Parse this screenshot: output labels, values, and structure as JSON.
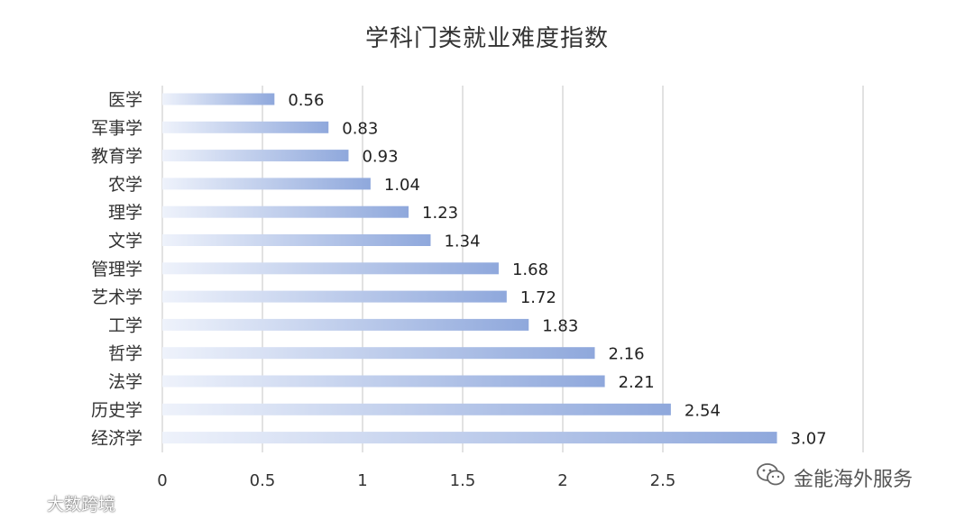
{
  "chart_data": {
    "type": "bar",
    "orientation": "horizontal",
    "title": "学科门类就业难度指数",
    "categories": [
      "医学",
      "军事学",
      "教育学",
      "农学",
      "理学",
      "文学",
      "管理学",
      "艺术学",
      "工学",
      "哲学",
      "法学",
      "历史学",
      "经济学"
    ],
    "values": [
      0.56,
      0.83,
      0.93,
      1.04,
      1.23,
      1.34,
      1.68,
      1.72,
      1.83,
      2.16,
      2.21,
      2.54,
      3.07
    ],
    "value_labels": [
      "0.56",
      "0.83",
      "0.93",
      "1.04",
      "1.23",
      "1.34",
      "1.68",
      "1.72",
      "1.83",
      "2.16",
      "2.21",
      "2.54",
      "3.07"
    ],
    "xlim": [
      0,
      3.5
    ],
    "x_ticks": [
      0,
      0.5,
      1,
      1.5,
      2,
      2.5
    ],
    "x_tick_labels": [
      "0",
      "0.5",
      "1",
      "1.5",
      "2",
      "2.5"
    ],
    "grid": true,
    "bar_color": "#8fa8dc",
    "bar_color_start": "#eef2fb"
  },
  "watermarks": {
    "left_text": "大数跨境",
    "left_icon": "weibo-logo-icon",
    "right_text": "金能海外服务",
    "right_icon": "wechat-logo-icon"
  }
}
